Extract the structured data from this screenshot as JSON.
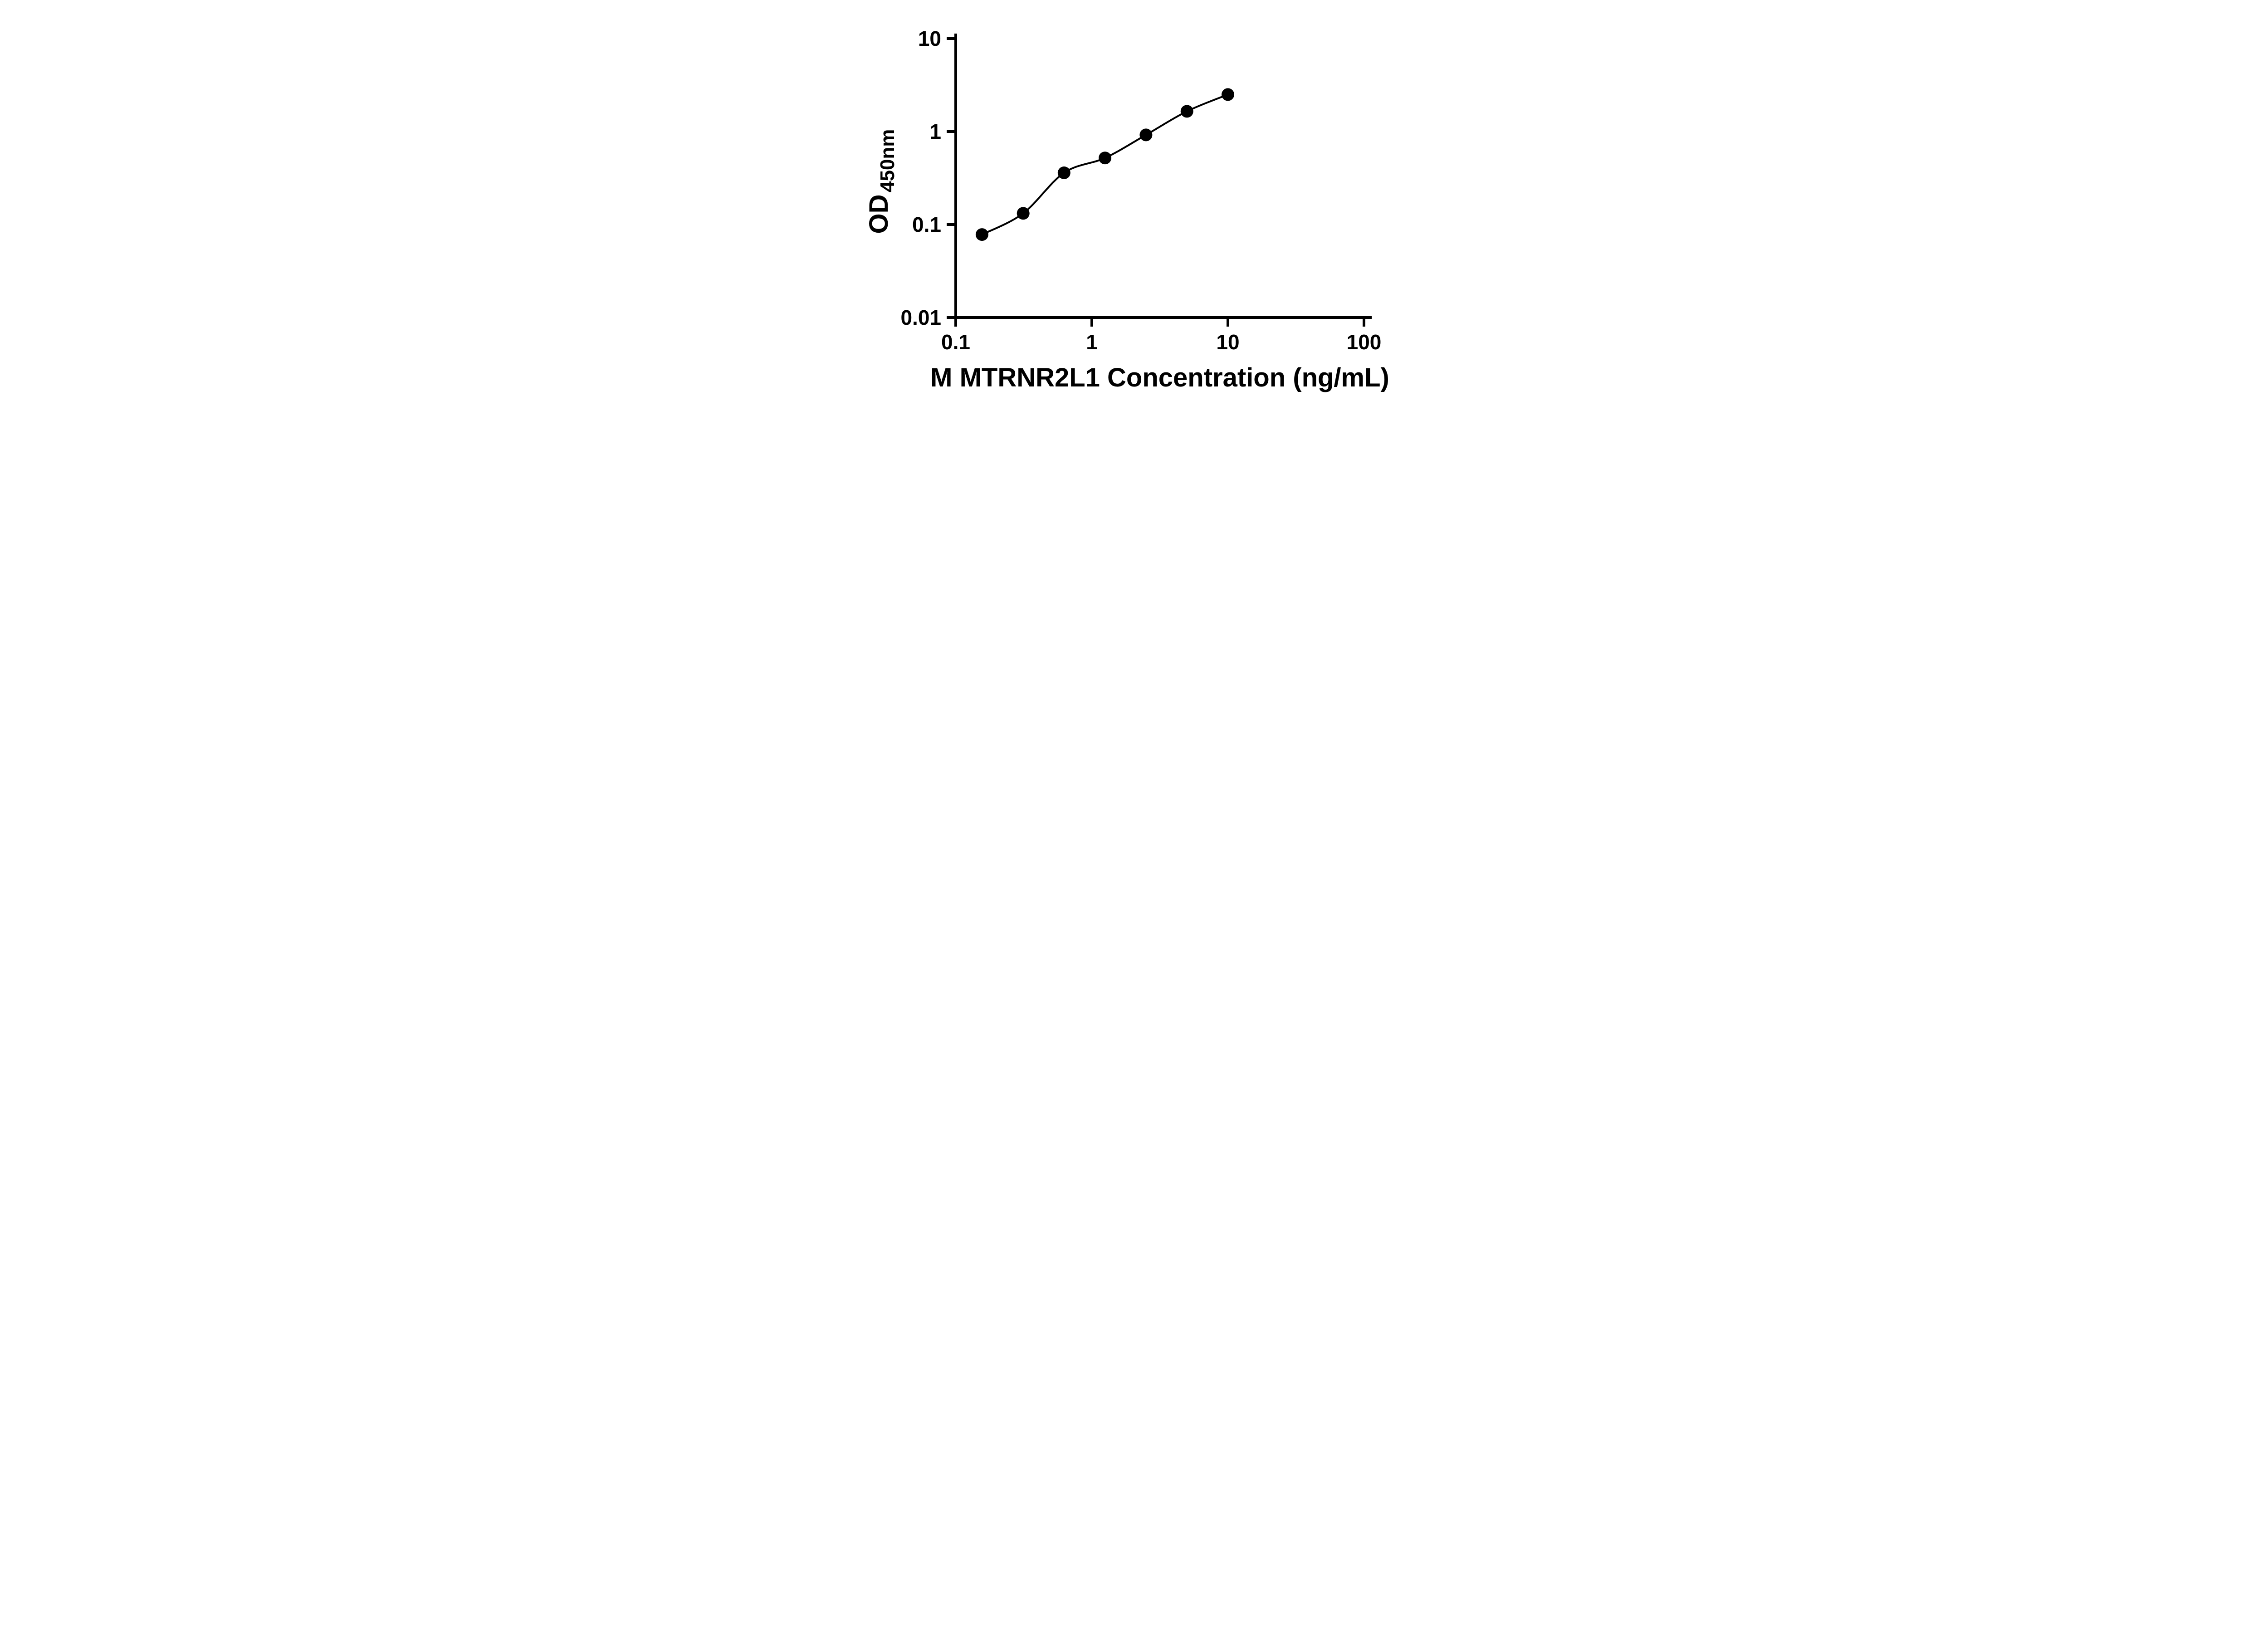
{
  "figure": {
    "background_color": "#ffffff"
  },
  "chart_data": {
    "type": "scatter",
    "subtype": "standard-curve-with-fitted-line",
    "x": [
      0.156,
      0.313,
      0.625,
      1.25,
      2.5,
      5,
      10
    ],
    "y": [
      0.078,
      0.132,
      0.36,
      0.52,
      0.92,
      1.65,
      2.5
    ],
    "x_scale": "log",
    "y_scale": "log",
    "xlim": [
      0.1,
      100
    ],
    "ylim": [
      0.01,
      10
    ],
    "x_ticks": [
      0.1,
      1,
      10,
      100
    ],
    "x_tick_labels": [
      "0.1",
      "1",
      "10",
      "100"
    ],
    "y_ticks": [
      0.01,
      0.1,
      1,
      10
    ],
    "y_tick_labels": [
      "0.01",
      "0.1",
      "1",
      "10"
    ],
    "xlabel": "M MTRNR2L1 Concentration (ng/mL)",
    "ylabel_main": "OD",
    "ylabel_sub": "450nm",
    "title": "",
    "grid": false,
    "legend_position": "none",
    "marker_color": "#000000",
    "line_color": "#000000",
    "axis_color": "#000000"
  }
}
